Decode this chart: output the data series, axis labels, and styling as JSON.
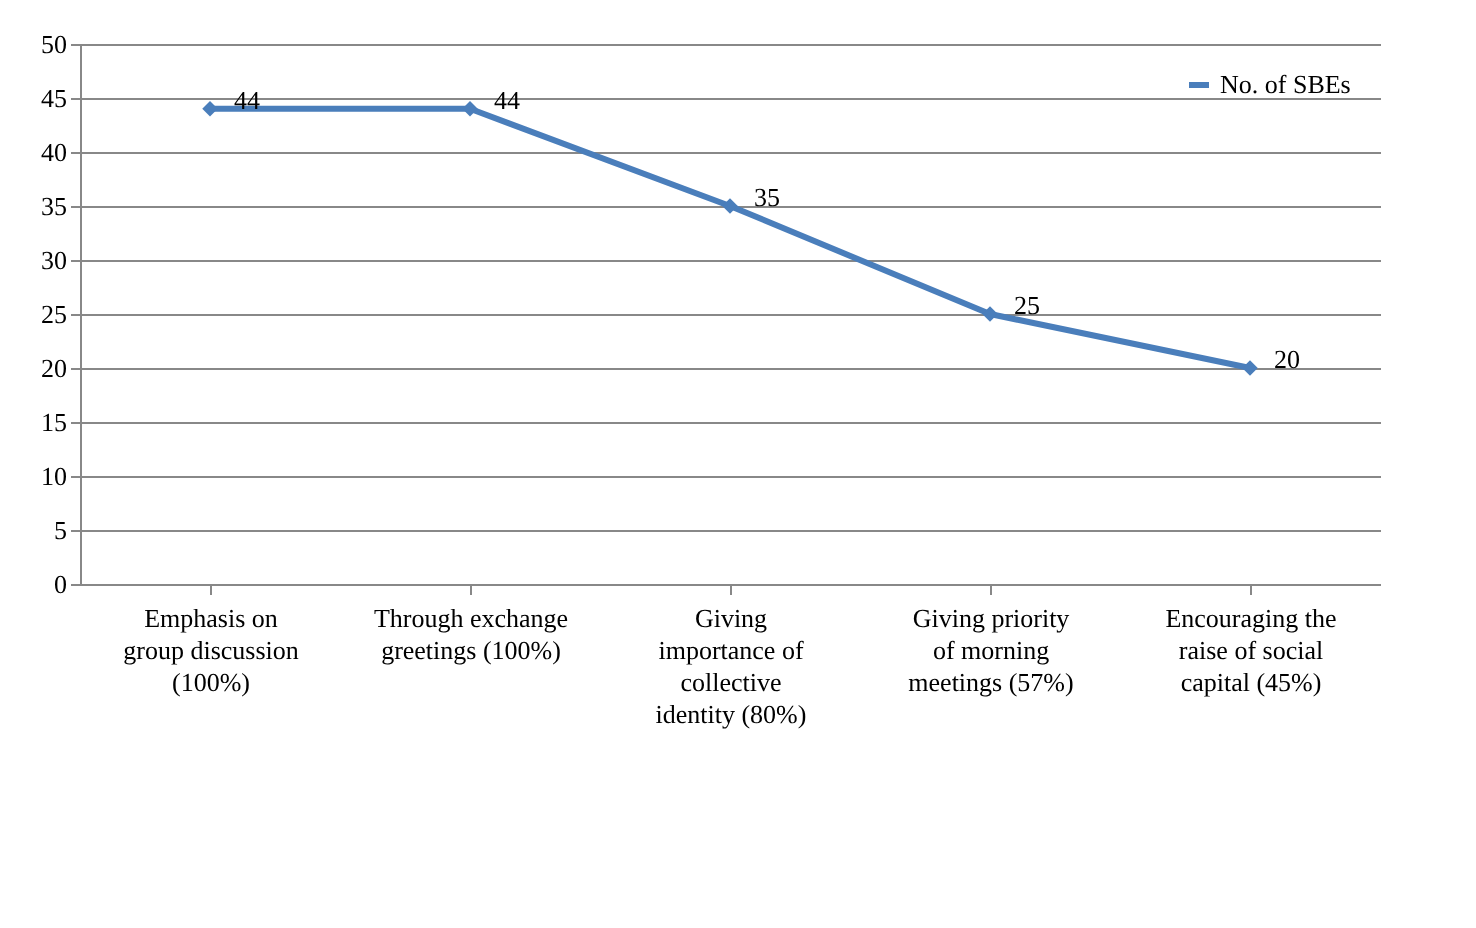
{
  "chart_data": {
    "type": "line",
    "categories": [
      "Emphasis on group discussion (100%)",
      "Through exchange greetings (100%)",
      "Giving importance of collective identity (80%)",
      "Giving priority of morning meetings (57%)",
      "Encouraging the raise of social capital (45%)"
    ],
    "series": [
      {
        "name": "No. of SBEs",
        "color": "#4a7ebb",
        "values": [
          44,
          44,
          35,
          25,
          20
        ]
      }
    ],
    "ylim": [
      0,
      50
    ],
    "yticks": [
      0,
      5,
      10,
      15,
      20,
      25,
      30,
      35,
      40,
      45,
      50
    ],
    "grid": "y",
    "legend": "top right",
    "marker": "diamond",
    "line_style": "solid",
    "data_labels": true
  }
}
